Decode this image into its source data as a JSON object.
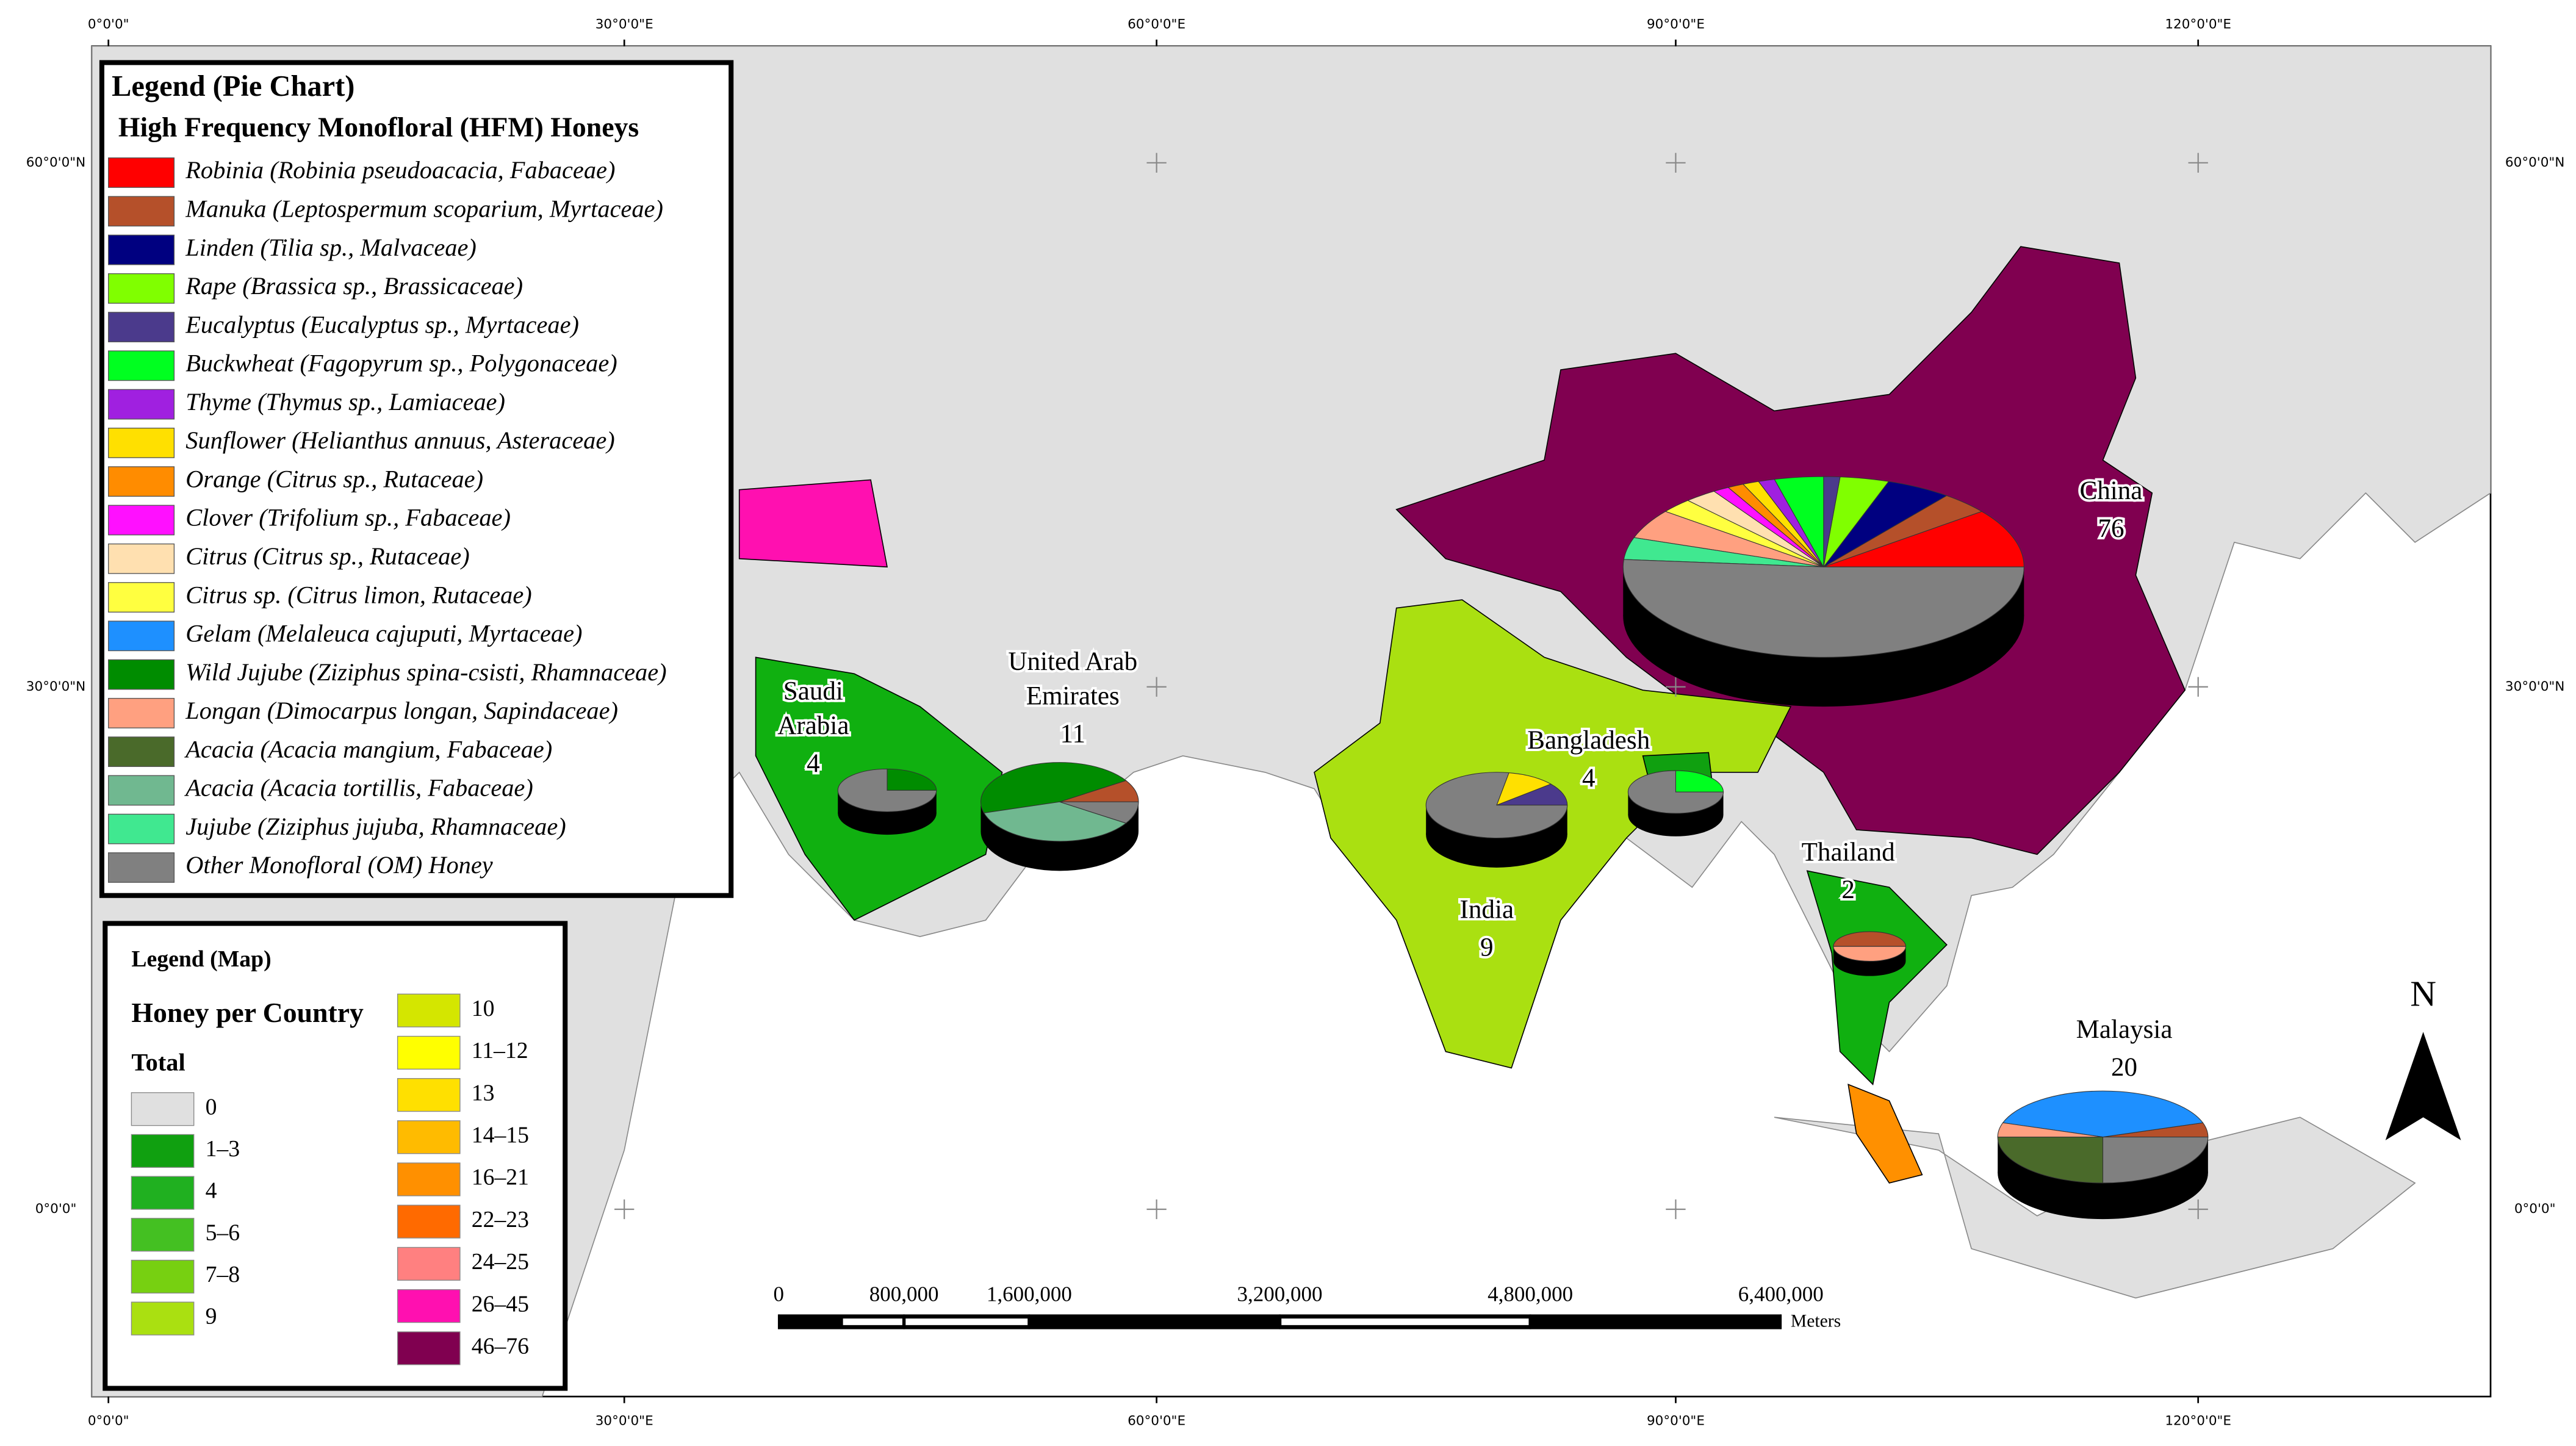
{
  "pie_legend": {
    "title": "Legend (Pie Chart)",
    "subtitle": "High Frequency Monofloral (HFM) Honeys",
    "items": [
      {
        "label": "Robinia (Robinia pseudoacacia, Fabaceae)",
        "color": "#ff0000"
      },
      {
        "label": "Manuka (Leptospermum scoparium, Myrtaceae)",
        "color": "#b5502a"
      },
      {
        "label": "Linden (Tilia sp., Malvaceae)",
        "color": "#000080"
      },
      {
        "label": "Rape (Brassica sp., Brassicaceae)",
        "color": "#80ff00"
      },
      {
        "label": "Eucalyptus (Eucalyptus sp., Myrtaceae)",
        "color": "#4b3a8c"
      },
      {
        "label": "Buckwheat (Fagopyrum sp., Polygonaceae)",
        "color": "#00ff20"
      },
      {
        "label": "Thyme (Thymus sp., Lamiaceae)",
        "color": "#a020e0"
      },
      {
        "label": "Sunflower (Helianthus annuus, Asteraceae)",
        "color": "#ffe000"
      },
      {
        "label": "Orange (Citrus sp., Rutaceae)",
        "color": "#ff8c00"
      },
      {
        "label": "Clover (Trifolium sp., Fabaceae)",
        "color": "#ff10ff"
      },
      {
        "label": "Citrus (Citrus sp., Rutaceae)",
        "color": "#ffe0b0"
      },
      {
        "label": "Citrus sp. (Citrus limon, Rutaceae)",
        "color": "#ffff40"
      },
      {
        "label": "Gelam (Melaleuca cajuputi, Myrtaceae)",
        "color": "#1e90ff"
      },
      {
        "label": "Wild Jujube (Ziziphus spina-csisti, Rhamnaceae)",
        "color": "#008c00"
      },
      {
        "label": "Longan (Dimocarpus longan, Sapindaceae)",
        "color": "#ffa080"
      },
      {
        "label": "Acacia (Acacia mangium, Fabaceae)",
        "color": "#4a6a2a"
      },
      {
        "label": "Acacia (Acacia tortillis, Fabaceae)",
        "color": "#70b890"
      },
      {
        "label": "Jujube (Ziziphus jujuba, Rhamnaceae)",
        "color": "#40e890"
      },
      {
        "label": "Other Monofloral (OM) Honey",
        "color": "#808080"
      }
    ]
  },
  "map_legend": {
    "title": "Legend (Map)",
    "subtitle": "Honey per Country",
    "group": "Total",
    "classes": [
      {
        "label": "0",
        "color": "#e0e0e0"
      },
      {
        "label": "1–3",
        "color": "#10a010"
      },
      {
        "label": "4",
        "color": "#20b020"
      },
      {
        "label": "5–6",
        "color": "#44c022"
      },
      {
        "label": "7–8",
        "color": "#77d011"
      },
      {
        "label": "9",
        "color": "#aae011"
      },
      {
        "label": "10",
        "color": "#d4e600"
      },
      {
        "label": "11–12",
        "color": "#ffff00"
      },
      {
        "label": "13",
        "color": "#ffe000"
      },
      {
        "label": "14–15",
        "color": "#ffbb00"
      },
      {
        "label": "16–21",
        "color": "#ff9000"
      },
      {
        "label": "22–23",
        "color": "#ff6a00"
      },
      {
        "label": "24–25",
        "color": "#ff8080"
      },
      {
        "label": "26–45",
        "color": "#ff10b0"
      },
      {
        "label": "46–76",
        "color": "#800050"
      }
    ]
  },
  "countries": [
    {
      "name_lines": [
        "China"
      ],
      "total": 76,
      "hfm_counts": [
        8,
        3,
        4,
        3,
        1,
        3,
        1,
        1,
        1,
        1,
        2,
        2,
        0,
        0,
        4,
        0,
        0,
        3,
        39
      ]
    },
    {
      "name_lines": [
        "Saudi",
        "Arabia"
      ],
      "total": 4,
      "hfm_counts": [
        0,
        0,
        0,
        0,
        0,
        0,
        0,
        0,
        0,
        0,
        0,
        0,
        0,
        1,
        0,
        0,
        0,
        0,
        3
      ]
    },
    {
      "name_lines": [
        "United Arab",
        "Emirates"
      ],
      "total": 11,
      "hfm_counts": [
        0,
        1,
        0,
        0,
        0,
        0,
        0,
        0,
        0,
        0,
        0,
        0,
        0,
        5,
        0,
        0,
        4,
        0,
        1
      ]
    },
    {
      "name_lines": [
        "India"
      ],
      "total": 9,
      "hfm_counts": [
        0,
        0,
        0,
        0,
        1,
        0,
        0,
        1,
        0,
        0,
        0,
        0,
        0,
        0,
        0,
        0,
        0,
        0,
        7
      ]
    },
    {
      "name_lines": [
        "Bangladesh"
      ],
      "total": 4,
      "hfm_counts": [
        0,
        0,
        0,
        0,
        0,
        1,
        0,
        0,
        0,
        0,
        0,
        0,
        0,
        0,
        0,
        0,
        0,
        0,
        3
      ]
    },
    {
      "name_lines": [
        "Thailand"
      ],
      "total": 2,
      "hfm_counts": [
        0,
        1,
        0,
        0,
        0,
        0,
        0,
        0,
        0,
        0,
        0,
        0,
        0,
        0,
        1,
        0,
        0,
        0,
        0
      ]
    },
    {
      "name_lines": [
        "Malaysia"
      ],
      "total": 20,
      "hfm_counts": [
        0,
        1,
        0,
        0,
        0,
        0,
        0,
        0,
        0,
        0,
        0,
        0,
        8,
        0,
        1,
        5,
        0,
        0,
        5
      ]
    }
  ],
  "graticule": {
    "lon_labels": [
      "0°0'0\"",
      "30°0'0\"E",
      "60°0'0\"E",
      "90°0'0\"E",
      "120°0'0\"E"
    ],
    "lat_labels": [
      "60°0'0\"N",
      "30°0'0\"N",
      "0°0'0\""
    ]
  },
  "scale_bar": {
    "ticks": [
      {
        "value": 0,
        "label": "0"
      },
      {
        "value": 800000,
        "label": "800,000"
      },
      {
        "value": 1600000,
        "label": "1,600,000"
      },
      {
        "value": 3200000,
        "label": "3,200,000"
      },
      {
        "value": 4800000,
        "label": "4,800,000"
      },
      {
        "value": 6400000,
        "label": "6,400,000"
      }
    ],
    "unit": "Meters"
  },
  "north_arrow": "N"
}
